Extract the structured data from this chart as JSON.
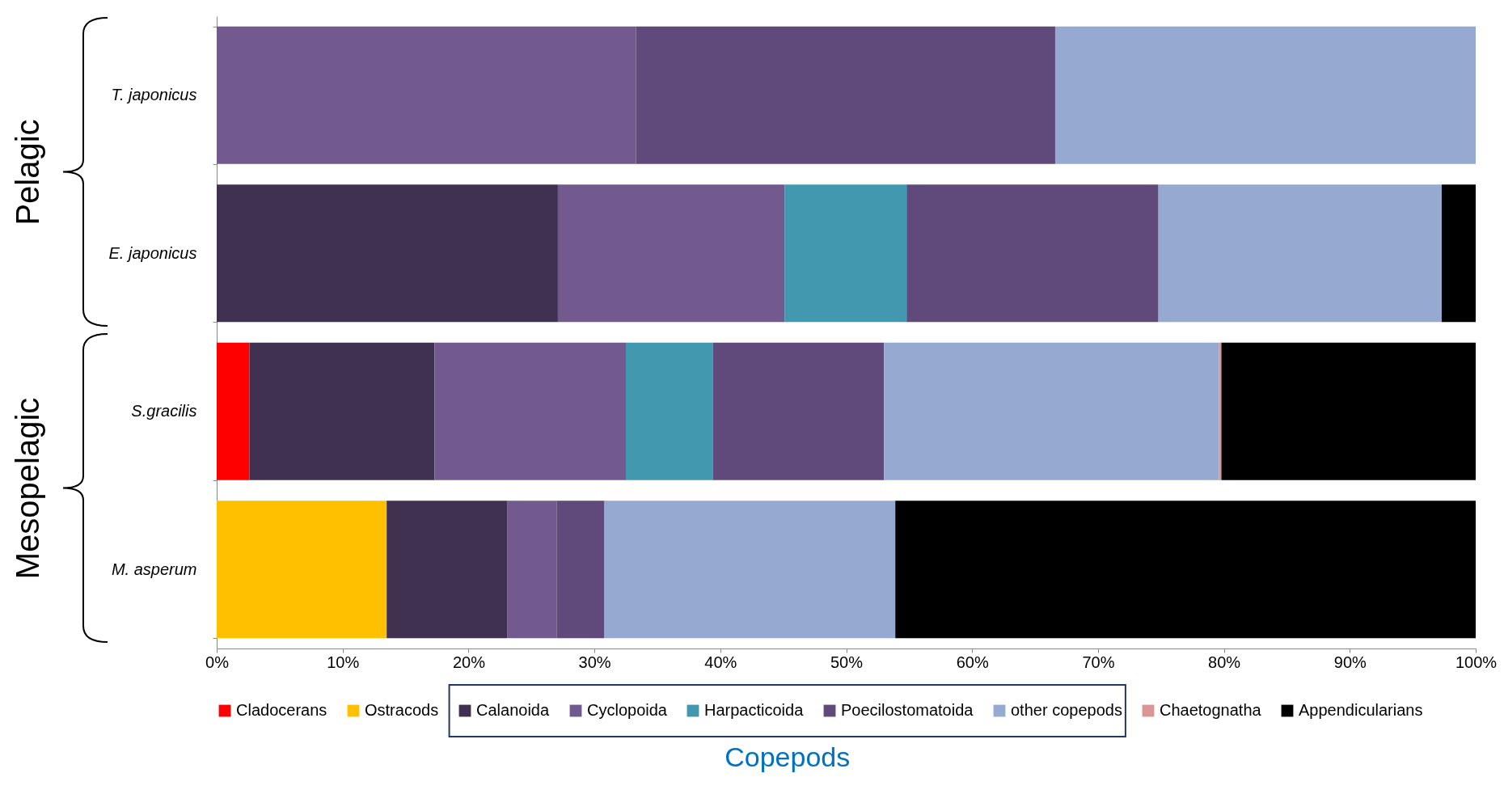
{
  "chart_data": {
    "type": "bar",
    "orientation": "horizontal",
    "stacked": true,
    "categories": [
      "T. japonicus",
      "E. japonicus",
      "S.gracilis",
      "M. asperum"
    ],
    "series": [
      {
        "name": "Cladocerans",
        "color": "#ff0000",
        "values": [
          0,
          0,
          2.6,
          0
        ]
      },
      {
        "name": "Ostracods",
        "color": "#ffc000",
        "values": [
          0,
          0,
          0,
          13.5
        ]
      },
      {
        "name": "Calanoida",
        "color": "#403151",
        "values": [
          0,
          27.1,
          14.7,
          9.6
        ]
      },
      {
        "name": "Cyclopoida",
        "color": "#725a8f",
        "values": [
          33.3,
          18.0,
          15.2,
          3.9
        ]
      },
      {
        "name": "Harpacticoida",
        "color": "#4198af",
        "values": [
          0,
          9.7,
          6.9,
          0
        ]
      },
      {
        "name": "Poecilostomatoida",
        "color": "#604a7b",
        "values": [
          33.3,
          20.0,
          13.6,
          3.8
        ]
      },
      {
        "name": "other copepods",
        "color": "#95a9d1",
        "values": [
          33.4,
          22.5,
          26.6,
          23.1
        ]
      },
      {
        "name": "Chaetognatha",
        "color": "#d99694",
        "values": [
          0,
          0,
          0.2,
          0
        ]
      },
      {
        "name": "Appendicularians",
        "color": "#000000",
        "values": [
          0,
          2.7,
          20.2,
          46.1
        ]
      }
    ],
    "xlim": [
      0,
      100
    ],
    "xticks": [
      {
        "value": 0,
        "label": "0%"
      },
      {
        "value": 10,
        "label": "10%"
      },
      {
        "value": 20,
        "label": "20%"
      },
      {
        "value": 30,
        "label": "30%"
      },
      {
        "value": 40,
        "label": "40%"
      },
      {
        "value": 50,
        "label": "50%"
      },
      {
        "value": 60,
        "label": "60%"
      },
      {
        "value": 70,
        "label": "70%"
      },
      {
        "value": 80,
        "label": "80%"
      },
      {
        "value": 90,
        "label": "90%"
      },
      {
        "value": 100,
        "label": "100%"
      }
    ],
    "legend": "bottom",
    "grid": false,
    "annotations": [
      "Pelagic",
      "Mesopelagic",
      "Copepods"
    ]
  }
}
